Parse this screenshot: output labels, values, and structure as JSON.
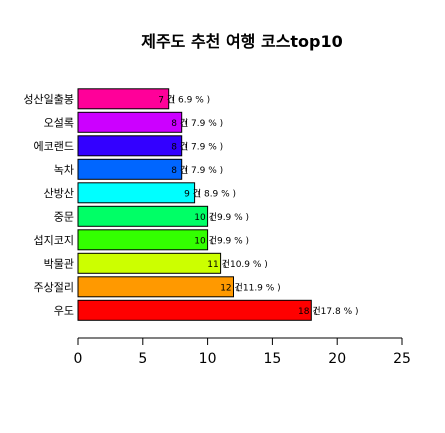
{
  "chart_data": {
    "type": "bar",
    "orientation": "horizontal",
    "title": "제주도 추천 여행 코스top10",
    "xlabel": "",
    "ylabel": "",
    "xlim": [
      0,
      25
    ],
    "x_ticks": [
      "0",
      "5",
      "10",
      "15",
      "20",
      "25"
    ],
    "grid": false,
    "legend": "none",
    "categories": [
      "성산일출봉",
      "오설록",
      "에코랜드",
      "녹차",
      "산방산",
      "중문",
      "섭지코지",
      "박물관",
      "주상절리",
      "우도"
    ],
    "values": [
      7,
      8,
      8,
      8,
      9,
      10,
      10,
      11,
      12,
      18
    ],
    "count_labels": [
      "7 건",
      "8 건",
      "8 건",
      "8 건",
      "9 건",
      "10 건",
      "10 건",
      "11 건",
      "12 건",
      "18 건"
    ],
    "pct_labels": [
      "( 6.9 % )",
      "( 7.9 % )",
      "( 7.9 % )",
      "( 7.9 % )",
      "( 8.9 % )",
      "( 9.9 % )",
      "( 9.9 % )",
      "( 10.9 % )",
      "( 11.9 % )",
      "( 17.8 % )"
    ],
    "colors": [
      "#ff0099",
      "#cc00ff",
      "#3300ff",
      "#0066ff",
      "#00ffff",
      "#00ff66",
      "#33ff00",
      "#ccff00",
      "#ff9900",
      "#ff0000"
    ]
  }
}
